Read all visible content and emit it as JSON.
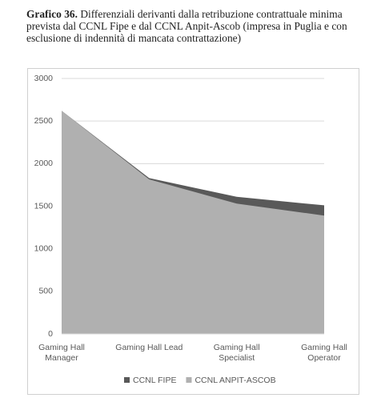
{
  "chart_data": {
    "type": "area",
    "title_label": "Grafico 36.",
    "title": "Differenziali derivanti dalla retribuzione contrattuale minima prevista dal CCNL Fipe e dal CCNL Anpit-Ascob (impresa in Puglia e con esclusione di indennità di mancata contrattazione)",
    "categories": [
      "Gaming Hall Manager",
      "Gaming Hall Lead",
      "Gaming Hall Specialist",
      "Gaming Hall Operator"
    ],
    "series": [
      {
        "name": "CCNL FIPE",
        "color": "#595959",
        "values": [
          2620,
          1830,
          1610,
          1510
        ]
      },
      {
        "name": "CCNL ANPIT-ASCOB",
        "color": "#b0b0b0",
        "values": [
          2620,
          1815,
          1530,
          1390
        ]
      }
    ],
    "ylim": [
      0,
      3000
    ],
    "yticks": [
      0,
      500,
      1000,
      1500,
      2000,
      2500,
      3000
    ],
    "grid": true,
    "legend": "bottom"
  }
}
